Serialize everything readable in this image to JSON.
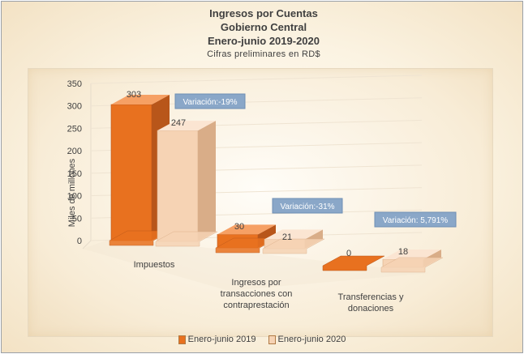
{
  "titles": {
    "line1": "Ingresos por Cuentas",
    "line2": "Gobierno Central",
    "line3": "Enero-junio 2019-2020",
    "subtitle": "Cifras preliminares en RD$"
  },
  "colors": {
    "series2019": "#e8711f",
    "series2019_top": "#f6a064",
    "series2019_side": "#b8561a",
    "series2020": "#f6d3b4",
    "series2020_top": "#fbe5d2",
    "series2020_side": "#d9ad88",
    "callout_bg": "#8aa7c8",
    "callout_border": "#6f8fb4"
  },
  "chart_data": {
    "type": "bar",
    "title": "Ingresos por Cuentas Gobierno Central Enero-junio 2019-2020",
    "subtitle": "Cifras preliminares en RD$",
    "ylabel": "Miles de millones",
    "xlabel": "",
    "ylim": [
      0,
      350
    ],
    "yticks": [
      "0",
      "50",
      "100",
      "150",
      "200",
      "250",
      "300",
      "350"
    ],
    "categories": [
      [
        "Impuestos"
      ],
      [
        "Ingresos por",
        "transacciones con",
        "contraprestación"
      ],
      [
        "Transferencias y",
        "donaciones"
      ]
    ],
    "series": [
      {
        "name": "Enero-junio 2019",
        "values": [
          303,
          30,
          0
        ],
        "labels": [
          "303",
          "30",
          "0"
        ]
      },
      {
        "name": "Enero-junio 2020",
        "values": [
          247,
          21,
          18
        ],
        "labels": [
          "247",
          "21",
          "18"
        ]
      }
    ],
    "annotations": [
      "Variación:-19%",
      "Variación:-31%",
      "Variación: 5,791%"
    ],
    "grid": true,
    "legend": "bottom"
  }
}
